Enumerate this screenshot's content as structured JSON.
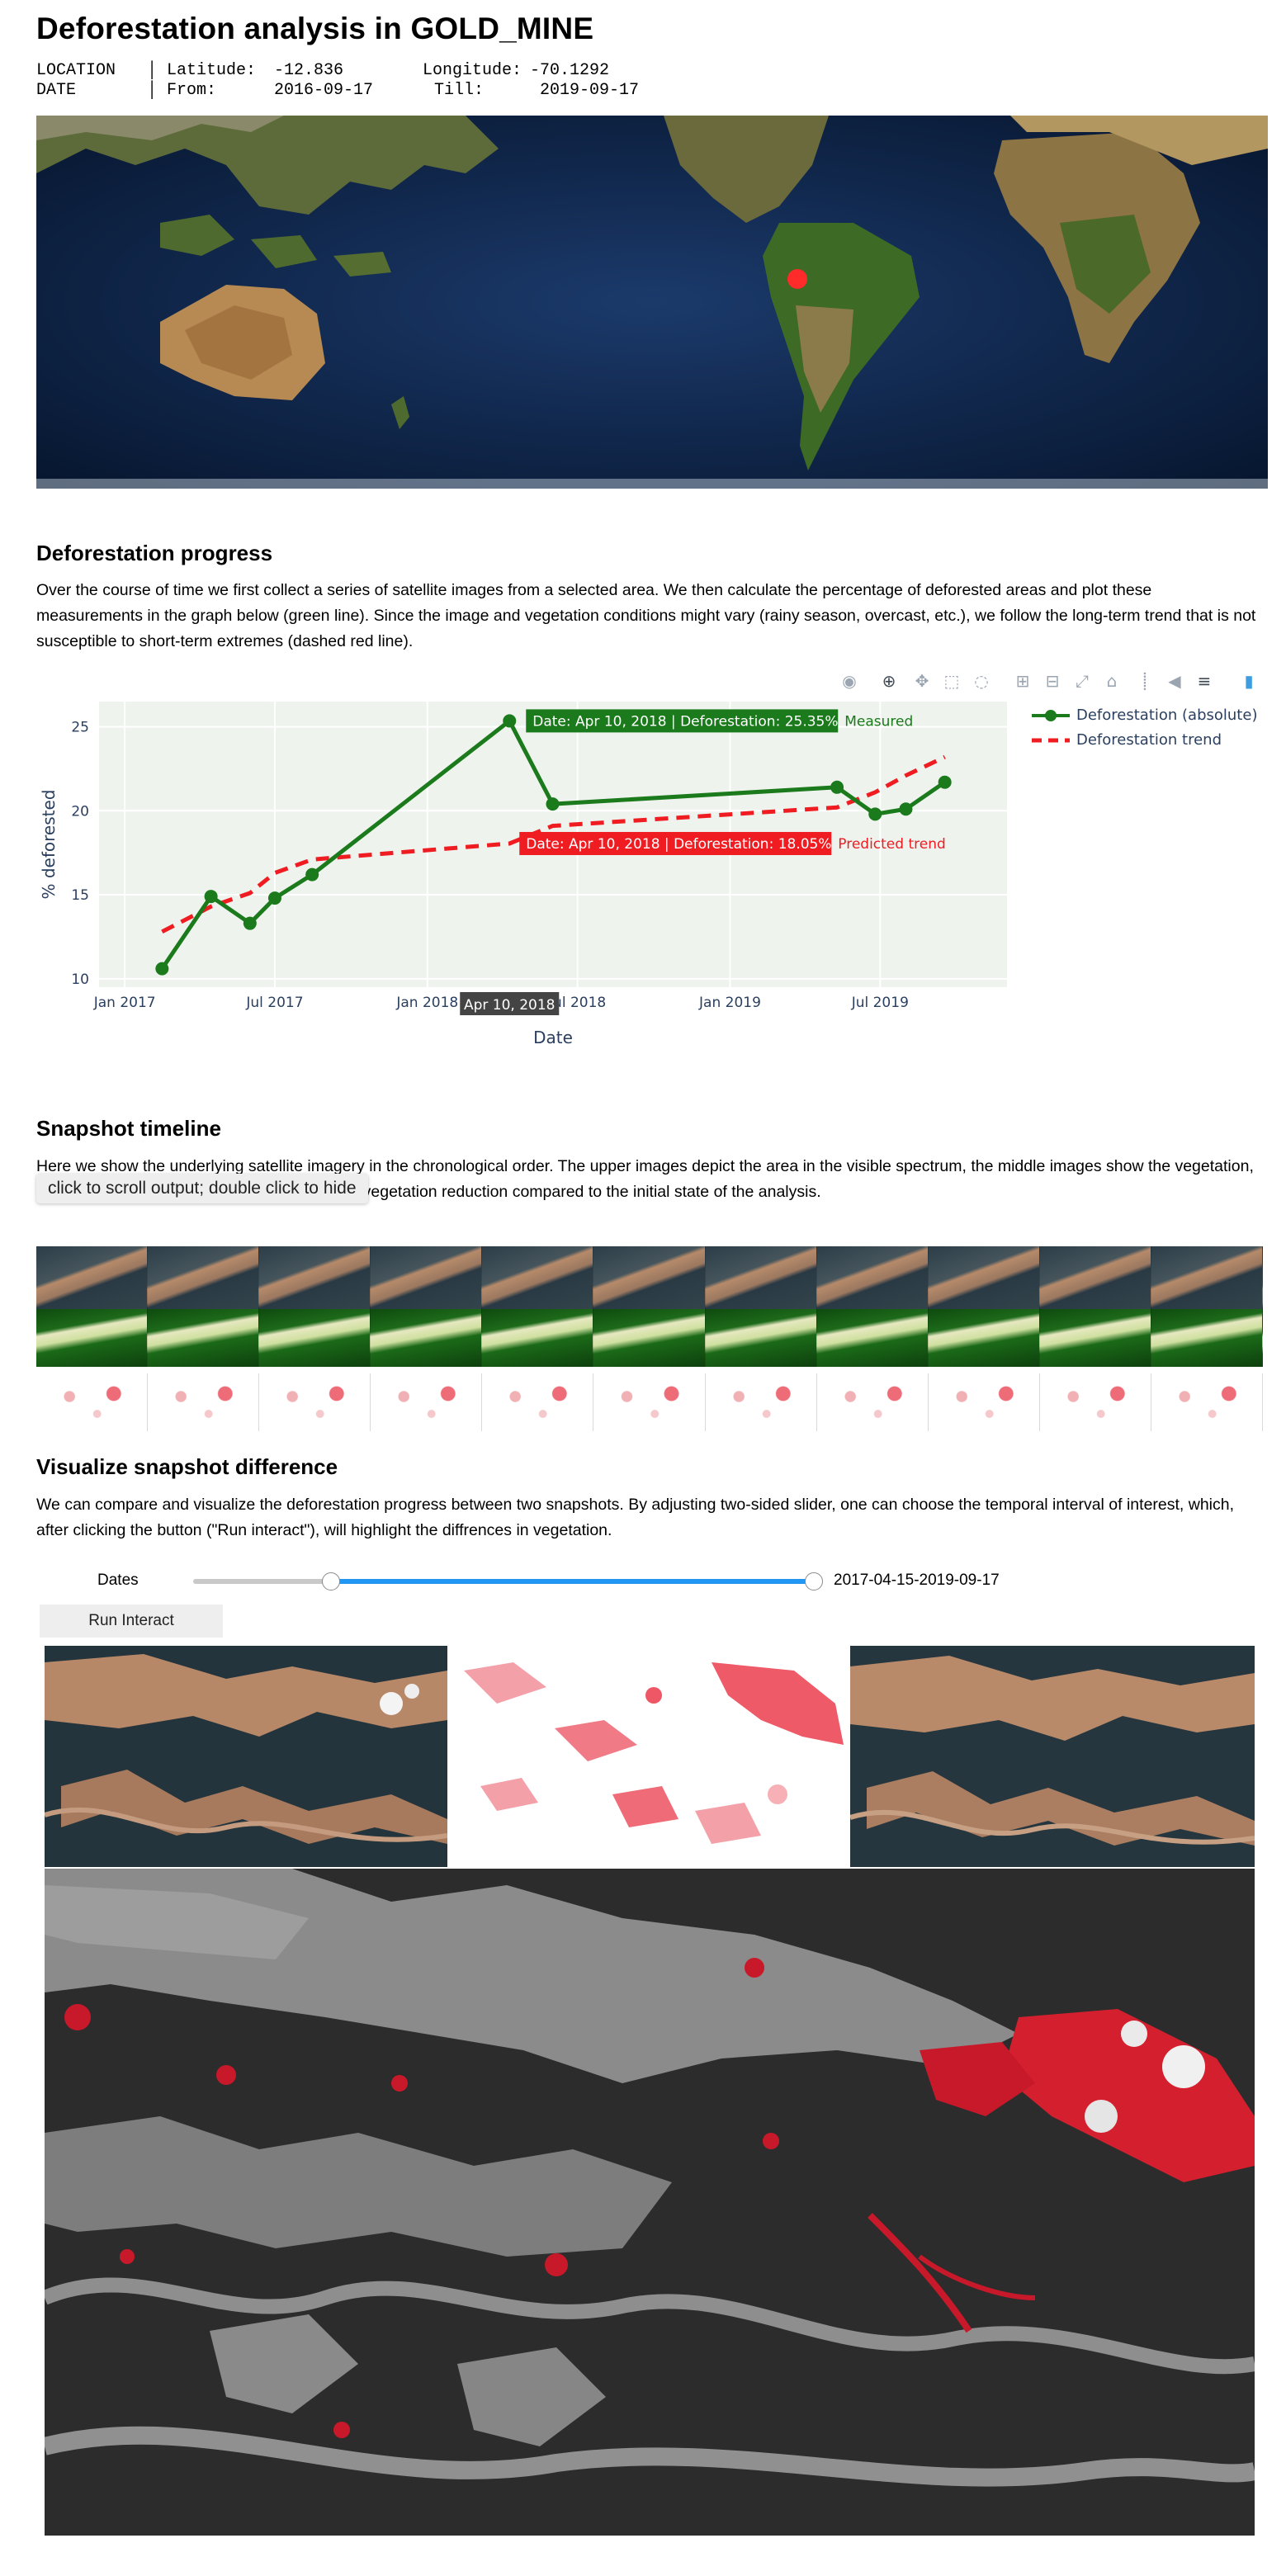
{
  "header": {
    "title": "Deforestation analysis in GOLD_MINE",
    "location_key": "LOCATION",
    "lat_label": "Latitude:",
    "lat_value": "-12.836",
    "lon_label": "Longitude:",
    "lon_value": "-70.1292",
    "date_key": "DATE",
    "from_label": "From:",
    "from_value": "2016-09-17",
    "till_label": "Till:",
    "till_value": "2019-09-17"
  },
  "progress": {
    "heading": "Deforestation progress",
    "text": "Over the course of time we first collect a series of satellite images from a selected area. We then calculate the percentage of deforested areas and plot these measurements in the graph below (green line). Since the image and vegetation conditions might vary (rainy season, overcast, etc.), we follow the long-term trend that is not susceptible to short-term extremes (dashed red line)."
  },
  "chart_data": {
    "type": "line",
    "xlabel": "Date",
    "ylabel": "% deforested",
    "x_ticks": [
      "Jan 2017",
      "Jul 2017",
      "Jan 2018",
      "Jul 2018",
      "Jan 2019",
      "Jul 2019"
    ],
    "y_ticks": [
      10,
      15,
      20,
      25
    ],
    "xlim": [
      "2016-12-01",
      "2019-12-01"
    ],
    "ylim": [
      9.5,
      26.5
    ],
    "grid": true,
    "legend_position": "top-right",
    "series": [
      {
        "name": "Deforestation (absolute)",
        "style": "solid-markers",
        "color": "#1b7a1b",
        "x": [
          "2017-02-15",
          "2017-04-15",
          "2017-06-01",
          "2017-07-01",
          "2017-08-15",
          "2018-04-10",
          "2018-06-01",
          "2019-05-10",
          "2019-06-25",
          "2019-08-01",
          "2019-09-17"
        ],
        "y": [
          10.6,
          14.9,
          13.3,
          14.8,
          16.2,
          25.35,
          20.4,
          21.4,
          19.8,
          20.1,
          21.7
        ]
      },
      {
        "name": "Deforestation trend",
        "style": "dashed",
        "color": "#ef1c22",
        "x": [
          "2017-02-15",
          "2017-04-15",
          "2017-06-01",
          "2017-07-01",
          "2017-08-15",
          "2018-04-10",
          "2018-06-01",
          "2019-05-10",
          "2019-06-25",
          "2019-08-01",
          "2019-09-17"
        ],
        "y": [
          12.8,
          14.3,
          15.1,
          16.3,
          17.1,
          18.05,
          19.1,
          20.2,
          21.1,
          22.1,
          23.2
        ]
      }
    ],
    "hover": {
      "x_label": "Apr 10, 2018",
      "measured_text": "Date: Apr 10, 2018 | Deforestation: 25.35%",
      "measured_name": "Measured",
      "predicted_text": "Date: Apr 10, 2018 | Deforestation: 18.05%",
      "predicted_name": "Predicted trend"
    }
  },
  "timeline": {
    "heading": "Snapshot timeline",
    "text": "Here we show the underlying satellite imagery in the chronological order. The upper images depict the area in the visible spectrum, the middle images show the vegetation, and the lower images highlight the areas with vegetation reduction compared to the initial state of the analysis.",
    "scroll_hint": "click to scroll output; double click to hide"
  },
  "difference": {
    "heading": "Visualize snapshot difference",
    "text": "We can compare and visualize the deforestation progress between two snapshots. By adjusting two-sided slider, one can choose the temporal interval of interest, which, after clicking the button (\"Run interact\"), will highlight the diffrences in vegetation.",
    "slider_label": "Dates",
    "slider_value": "2017-04-15-2019-09-17",
    "slider_low_fraction": 0.22,
    "slider_high_fraction": 0.99,
    "button_label": "Run Interact"
  },
  "colors": {
    "measured": "#1b7a1b",
    "trend": "#ef1c22",
    "slider_active": "#2196f3",
    "plot_bg": "#eef3ee"
  }
}
